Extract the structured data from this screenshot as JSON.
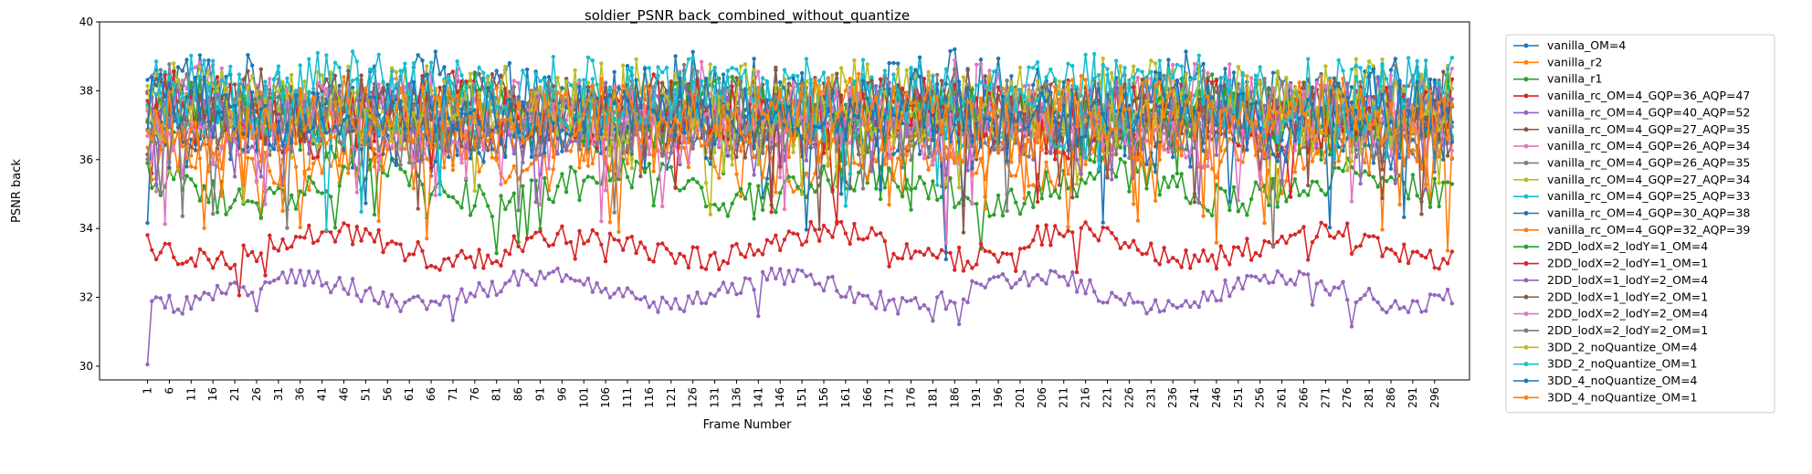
{
  "chart_data": {
    "type": "line",
    "title": "soldier_PSNR back_combined_without_quantize",
    "xlabel": "Frame Number",
    "ylabel": "PSNR back",
    "xlim": [
      1,
      300
    ],
    "ylim": [
      29.6,
      40
    ],
    "yticks": [
      30,
      32,
      34,
      36,
      38,
      40
    ],
    "xtick_labels": [
      "1",
      "6",
      "11",
      "16",
      "21",
      "26",
      "31",
      "36",
      "41",
      "46",
      "51",
      "56",
      "61",
      "66",
      "71",
      "76",
      "81",
      "86",
      "91",
      "96",
      "101",
      "106",
      "111",
      "116",
      "121",
      "126",
      "131",
      "136",
      "141",
      "146",
      "151",
      "156",
      "161",
      "166",
      "171",
      "176",
      "181",
      "186",
      "191",
      "196",
      "201",
      "206",
      "211",
      "216",
      "221",
      "226",
      "231",
      "236",
      "241",
      "246",
      "251",
      "256",
      "261",
      "266",
      "271",
      "276",
      "281",
      "286",
      "291",
      "296"
    ],
    "grid": false,
    "legend_position": "outside-right",
    "series": [
      {
        "name": "vanilla_OM=4",
        "color": "#1f77b4",
        "base": 37.8,
        "amp": 1.1
      },
      {
        "name": "vanilla_r2",
        "color": "#ff7f0e",
        "base": 36.3,
        "amp": 0.9
      },
      {
        "name": "vanilla_r1",
        "color": "#2ca02c",
        "base": 35.2,
        "amp": 0.5
      },
      {
        "name": "vanilla_rc_OM=4_GQP=36_AQP=47",
        "color": "#d62728",
        "base": 33.5,
        "amp": 0.35
      },
      {
        "name": "vanilla_rc_OM=4_GQP=40_AQP=52",
        "color": "#9467bd",
        "base": 32.2,
        "amp": 0.3
      },
      {
        "name": "vanilla_rc_OM=4_GQP=27_AQP=35",
        "color": "#8c564b",
        "base": 37.4,
        "amp": 1.0
      },
      {
        "name": "vanilla_rc_OM=4_GQP=26_AQP=34",
        "color": "#e377c2",
        "base": 37.5,
        "amp": 1.0
      },
      {
        "name": "vanilla_rc_OM=4_GQP=26_AQP=35",
        "color": "#7f7f7f",
        "base": 37.4,
        "amp": 1.0
      },
      {
        "name": "vanilla_rc_OM=4_GQP=27_AQP=34",
        "color": "#bcbd22",
        "base": 37.6,
        "amp": 1.0
      },
      {
        "name": "vanilla_rc_OM=4_GQP=25_AQP=33",
        "color": "#17becf",
        "base": 37.8,
        "amp": 1.0
      },
      {
        "name": "vanilla_rc_OM=4_GQP=30_AQP=38",
        "color": "#1f77b4",
        "base": 37.0,
        "amp": 1.0
      },
      {
        "name": "vanilla_rc_OM=4_GQP=32_AQP=39",
        "color": "#ff7f0e",
        "base": 36.8,
        "amp": 1.0
      },
      {
        "name": "2DD_lodX=2_lodY=1_OM=4",
        "color": "#2ca02c",
        "base": 37.2,
        "amp": 0.9
      },
      {
        "name": "2DD_lodX=2_lodY=1_OM=1",
        "color": "#d62728",
        "base": 37.3,
        "amp": 0.9
      },
      {
        "name": "2DD_lodX=1_lodY=2_OM=4",
        "color": "#9467bd",
        "base": 37.2,
        "amp": 0.9
      },
      {
        "name": "2DD_lodX=1_lodY=2_OM=1",
        "color": "#8c564b",
        "base": 37.3,
        "amp": 0.9
      },
      {
        "name": "2DD_lodX=2_lodY=2_OM=4",
        "color": "#e377c2",
        "base": 37.0,
        "amp": 0.9
      },
      {
        "name": "2DD_lodX=2_lodY=2_OM=1",
        "color": "#7f7f7f",
        "base": 37.1,
        "amp": 0.9
      },
      {
        "name": "3DD_2_noQuantize_OM=4",
        "color": "#bcbd22",
        "base": 37.5,
        "amp": 1.0
      },
      {
        "name": "3DD_2_noQuantize_OM=1",
        "color": "#17becf",
        "base": 37.7,
        "amp": 1.0
      },
      {
        "name": "3DD_4_noQuantize_OM=4",
        "color": "#1f77b4",
        "base": 37.3,
        "amp": 1.0
      },
      {
        "name": "3DD_4_noQuantize_OM=1",
        "color": "#ff7f0e",
        "base": 37.2,
        "amp": 1.0
      }
    ]
  }
}
